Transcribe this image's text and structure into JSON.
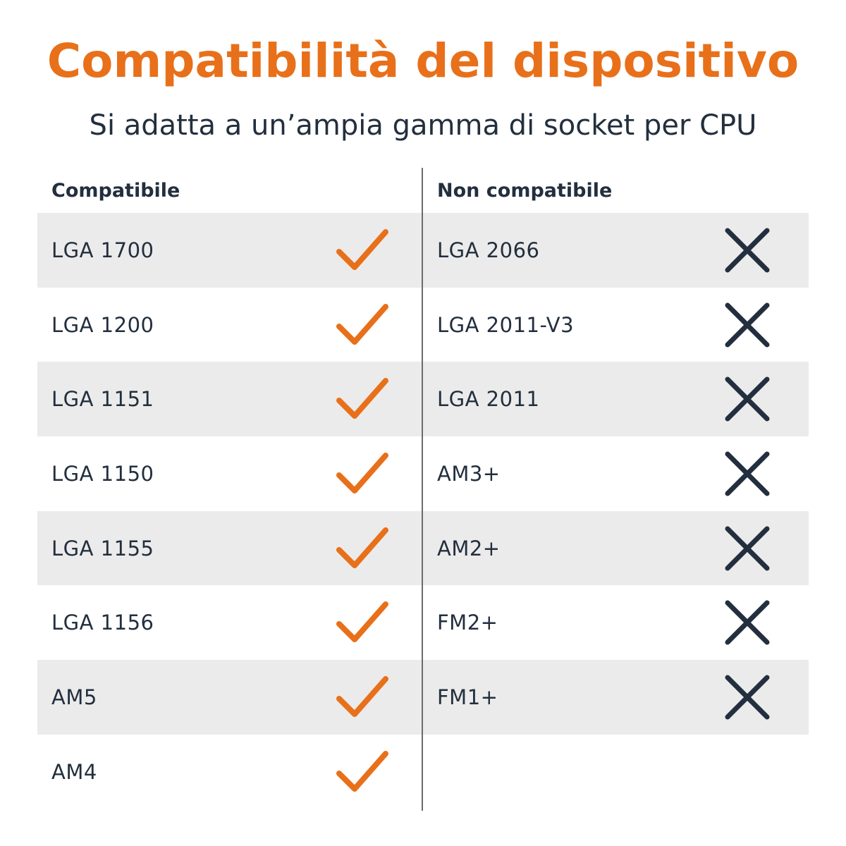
{
  "header": {
    "title": "Compatibilità del dispositivo",
    "subtitle": "Si adatta a un’ampia gamma di socket per CPU"
  },
  "colors": {
    "accent": "#e8701a",
    "text": "#232f3e",
    "row_shade": "#ebebeb",
    "divider": "#6b6b6b"
  },
  "compatible": {
    "heading": "Compatibile",
    "icon": "check-icon",
    "items": [
      {
        "label": "LGA 1700"
      },
      {
        "label": "LGA 1200"
      },
      {
        "label": "LGA 1151"
      },
      {
        "label": "LGA 1150"
      },
      {
        "label": "LGA 1155"
      },
      {
        "label": "LGA 1156"
      },
      {
        "label": "AM5"
      },
      {
        "label": "AM4"
      }
    ]
  },
  "incompatible": {
    "heading": "Non compatibile",
    "icon": "cross-icon",
    "items": [
      {
        "label": "LGA 2066"
      },
      {
        "label": "LGA 2011-V3"
      },
      {
        "label": "LGA 2011"
      },
      {
        "label": "AM3+"
      },
      {
        "label": "AM2+"
      },
      {
        "label": "FM2+"
      },
      {
        "label": "FM1+"
      }
    ]
  }
}
